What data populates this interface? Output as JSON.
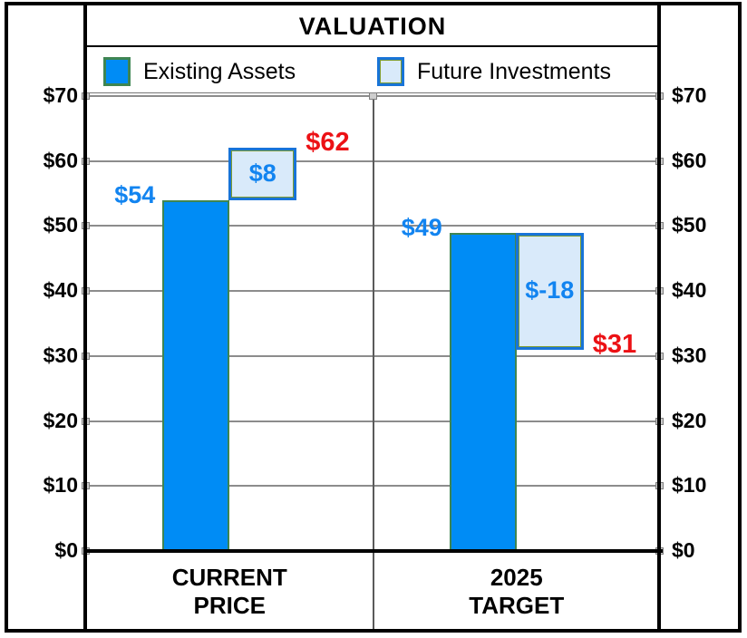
{
  "chart_data": {
    "type": "bar",
    "subtype": "waterfall-stacked",
    "title": "VALUATION",
    "grid": true,
    "legend_position": "top",
    "y_axis": {
      "min": 0,
      "max": 70,
      "step": 10,
      "sides": "both",
      "tick_labels_top_to_bottom": [
        "$70",
        "$60",
        "$50",
        "$40",
        "$30",
        "$20",
        "$10",
        "$0"
      ]
    },
    "categories": [
      {
        "lines": [
          "CURRENT",
          "PRICE"
        ]
      },
      {
        "lines": [
          "2025",
          "TARGET"
        ]
      }
    ],
    "series": [
      {
        "name": "Existing Assets",
        "values": [
          54,
          49
        ],
        "fill": "#008CF5",
        "border": "#3E8552"
      },
      {
        "name": "Future Investments",
        "values": [
          8,
          -18
        ],
        "fill": "#D9EAFA",
        "border": "#1874D8"
      }
    ],
    "totals": [
      62,
      31
    ],
    "bars": [
      {
        "base": 54,
        "delta": 8,
        "total": 62,
        "base_label": "$54",
        "delta_label": "$8",
        "total_label": "$62"
      },
      {
        "base": 49,
        "delta": -18,
        "total": 31,
        "base_label": "$49",
        "delta_label": "$-18",
        "total_label": "$31"
      }
    ],
    "colors": {
      "value_label_blue": "#1284F0",
      "total_label_red": "#EC1115",
      "gridline_gray": "#8C8C8C"
    }
  }
}
